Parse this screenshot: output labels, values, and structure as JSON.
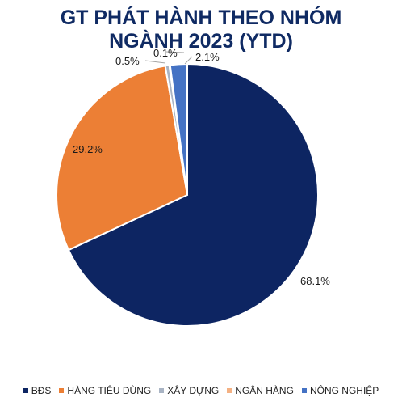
{
  "title_line1": "GT PHÁT HÀNH THEO NHÓM",
  "title_line2": "NGÀNH 2023 (YTD)",
  "chart_data": {
    "type": "pie",
    "title": "GT PHÁT HÀNH THEO NHÓM NGÀNH 2023 (YTD)",
    "unit": "%",
    "slices": [
      {
        "name": "BĐS",
        "value": 68.1,
        "label": "68.1%",
        "color": "#0d2562"
      },
      {
        "name": "HÀNG TIÊU DÙNG",
        "value": 29.2,
        "label": "29.2%",
        "color": "#ec7f35"
      },
      {
        "name": "XÂY DỰNG",
        "value": 0.5,
        "label": "0.5%",
        "color": "#a9b4c4"
      },
      {
        "name": "NGÂN HÀNG",
        "value": 0.1,
        "label": "0.1%",
        "color": "#f4b183"
      },
      {
        "name": "NÔNG NGHIỆP",
        "value": 2.1,
        "label": "2.1%",
        "color": "#4472c4"
      }
    ],
    "legend_position": "bottom"
  }
}
